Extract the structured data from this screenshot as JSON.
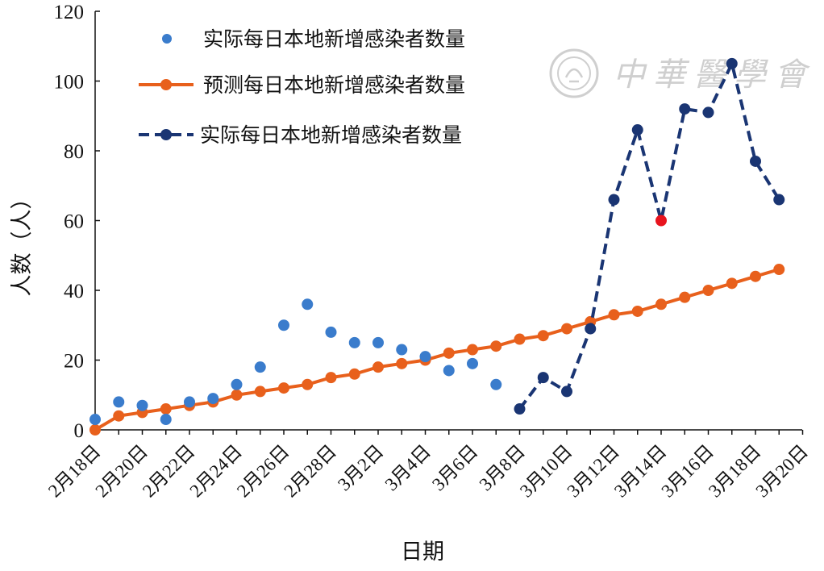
{
  "colors": {
    "scatter": "#3a7ccc",
    "predicted": "#e8601c",
    "actual_line": "#1a3573",
    "highlight": "#e8141e",
    "axis": "#111111",
    "watermark": "#cfcfcf"
  },
  "watermark": {
    "text": "中華醫學會",
    "icon": "society-seal-icon"
  },
  "chart_data": {
    "type": "line",
    "xlabel": "日期",
    "ylabel": "人数（人）",
    "ylim": [
      0,
      120
    ],
    "yticks": [
      0,
      20,
      40,
      60,
      80,
      100,
      120
    ],
    "grid": false,
    "legend_position": "top-left",
    "categories": [
      "2月18日",
      "2月19日",
      "2月20日",
      "2月21日",
      "2月22日",
      "2月23日",
      "2月24日",
      "2月25日",
      "2月26日",
      "2月27日",
      "2月28日",
      "2月29日",
      "3月1日",
      "3月2日",
      "3月3日",
      "3月4日",
      "3月5日",
      "3月6日",
      "3月7日",
      "3月8日",
      "3月9日",
      "3月10日",
      "3月11日",
      "3月12日",
      "3月13日",
      "3月14日",
      "3月15日",
      "3月16日",
      "3月17日",
      "3月18日",
      "3月19日",
      "3月20日"
    ],
    "x_tick_labels": [
      "2月18日",
      "2月20日",
      "2月22日",
      "2月24日",
      "2月26日",
      "2月28日",
      "3月2日",
      "3月4日",
      "3月6日",
      "3月8日",
      "3月10日",
      "3月12日",
      "3月14日",
      "3月16日",
      "3月18日",
      "3月20日"
    ],
    "series": [
      {
        "name": "实际每日本地新增感染者数量",
        "kind": "scatter",
        "values": [
          3,
          8,
          7,
          3,
          8,
          9,
          13,
          18,
          30,
          36,
          28,
          25,
          25,
          23,
          21,
          17,
          19,
          13,
          null,
          null,
          null,
          null,
          null,
          null,
          null,
          null,
          null,
          null,
          null,
          null,
          null,
          null
        ]
      },
      {
        "name": "预测每日本地新增感染者数量",
        "kind": "line-solid",
        "values": [
          0,
          4,
          5,
          6,
          7,
          8,
          10,
          11,
          12,
          13,
          15,
          16,
          18,
          19,
          20,
          22,
          23,
          24,
          26,
          27,
          29,
          31,
          33,
          34,
          36,
          38,
          40,
          42,
          44,
          46,
          null,
          null
        ]
      },
      {
        "name": "实际每日本地新增感染者数量",
        "kind": "line-dashed",
        "values": [
          null,
          null,
          null,
          null,
          null,
          null,
          null,
          null,
          null,
          null,
          null,
          null,
          null,
          null,
          null,
          null,
          null,
          null,
          6,
          15,
          11,
          29,
          66,
          86,
          60,
          92,
          91,
          105,
          77,
          66,
          null,
          null
        ],
        "highlight_index": 24
      }
    ]
  }
}
